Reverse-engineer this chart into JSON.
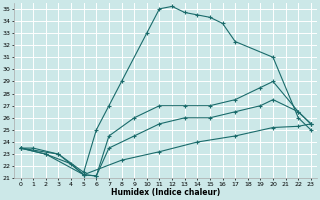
{
  "xlabel": "Humidex (Indice chaleur)",
  "bg_color": "#cce8e8",
  "grid_color": "#ffffff",
  "line_color": "#1a6b6b",
  "xlim": [
    -0.5,
    23.5
  ],
  "ylim": [
    21,
    35.5
  ],
  "xticks": [
    0,
    1,
    2,
    3,
    4,
    5,
    6,
    7,
    8,
    9,
    10,
    11,
    12,
    13,
    14,
    15,
    16,
    17,
    18,
    19,
    20,
    21,
    22,
    23
  ],
  "yticks": [
    21,
    22,
    23,
    24,
    25,
    26,
    27,
    28,
    29,
    30,
    31,
    32,
    33,
    34,
    35
  ],
  "series": [
    {
      "x": [
        0,
        1,
        3,
        5,
        6,
        7,
        8,
        10,
        11,
        12,
        13,
        14,
        15,
        16,
        17,
        20,
        22,
        23
      ],
      "y": [
        23.5,
        23.5,
        23.0,
        21.5,
        25.0,
        27.0,
        29.0,
        33.0,
        35.0,
        35.2,
        34.7,
        34.5,
        34.3,
        33.8,
        32.3,
        31.0,
        26.0,
        25.0
      ]
    },
    {
      "x": [
        0,
        3,
        5,
        6,
        7,
        9,
        11,
        13,
        15,
        17,
        19,
        20,
        22,
        23
      ],
      "y": [
        23.5,
        23.0,
        21.3,
        21.2,
        24.5,
        26.0,
        27.0,
        27.0,
        27.0,
        27.5,
        28.5,
        29.0,
        26.5,
        25.5
      ]
    },
    {
      "x": [
        0,
        2,
        5,
        6,
        7,
        9,
        11,
        13,
        15,
        17,
        19,
        20,
        22,
        23
      ],
      "y": [
        23.5,
        23.0,
        21.3,
        21.2,
        23.5,
        24.5,
        25.5,
        26.0,
        26.0,
        26.5,
        27.0,
        27.5,
        26.5,
        25.5
      ]
    },
    {
      "x": [
        0,
        2,
        4,
        5,
        8,
        11,
        14,
        17,
        20,
        22,
        23
      ],
      "y": [
        23.5,
        23.0,
        22.2,
        21.3,
        22.5,
        23.2,
        24.0,
        24.5,
        25.2,
        25.3,
        25.5
      ]
    }
  ]
}
